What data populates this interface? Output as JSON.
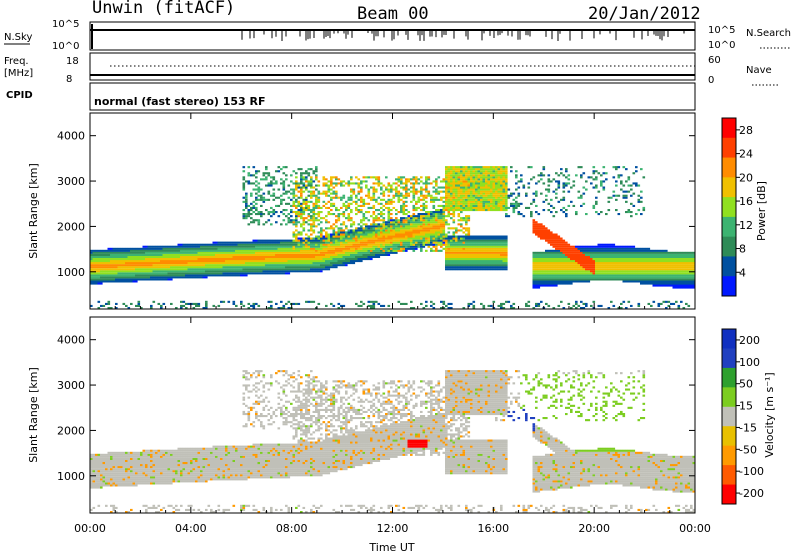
{
  "header": {
    "site": "Unwin (fitACF)",
    "beam": "Beam 00",
    "date": "20/Jan/2012"
  },
  "nsky_panel": {
    "left_label": "N.Sky",
    "left_ticks": [
      "10^5",
      "10^0"
    ],
    "right_label": "N.Search",
    "right_ticks": [
      "10^5",
      "10^0"
    ]
  },
  "freq_panel": {
    "left_label_1": "Freq.",
    "left_label_2": "[MHz]",
    "left_ticks": [
      "18",
      "8"
    ],
    "right_label": "Nave",
    "right_ticks": [
      "60",
      "0"
    ]
  },
  "cpid": {
    "label": "CPID",
    "value": "normal (fast stereo) 153 RF"
  },
  "colors": {
    "power_scale": [
      "#0018ff",
      "#0050a0",
      "#2e8b57",
      "#3cb371",
      "#90e020",
      "#f0c000",
      "#ff8c00",
      "#ff4000",
      "#ff0000"
    ],
    "velocity_scale": [
      "#ff0000",
      "#ff5a00",
      "#ff9a00",
      "#e8c000",
      "#c0c0b8",
      "#7ccd20",
      "#2ea02e",
      "#2040c0",
      "#1030c0"
    ]
  },
  "chart_data": [
    {
      "type": "heatmap",
      "title": "Power",
      "xlabel": "",
      "ylabel": "Slant Range [km]",
      "x_ticks": [
        "",
        "",
        "",
        "",
        "",
        "",
        ""
      ],
      "y_ticks": [
        "1000",
        "2000",
        "3000",
        "4000"
      ],
      "ylim": [
        180,
        4500
      ],
      "colorbar_label": "Power [dB]",
      "colorbar_ticks": [
        "4",
        "8",
        "12",
        "16",
        "20",
        "24",
        "28"
      ],
      "colorbar_range": [
        0,
        30
      ]
    },
    {
      "type": "heatmap",
      "title": "Velocity",
      "xlabel": "Time UT",
      "ylabel": "Slant Range [km]",
      "x_ticks": [
        "00:00",
        "04:00",
        "08:00",
        "12:00",
        "16:00",
        "20:00",
        "00:00"
      ],
      "y_ticks": [
        "1000",
        "2000",
        "3000",
        "4000"
      ],
      "ylim": [
        180,
        4500
      ],
      "colorbar_label": "Velocity [m s⁻¹]",
      "colorbar_ticks": [
        "200",
        "100",
        "50",
        "15",
        "-15",
        "-50",
        "-100",
        "-200"
      ]
    }
  ]
}
